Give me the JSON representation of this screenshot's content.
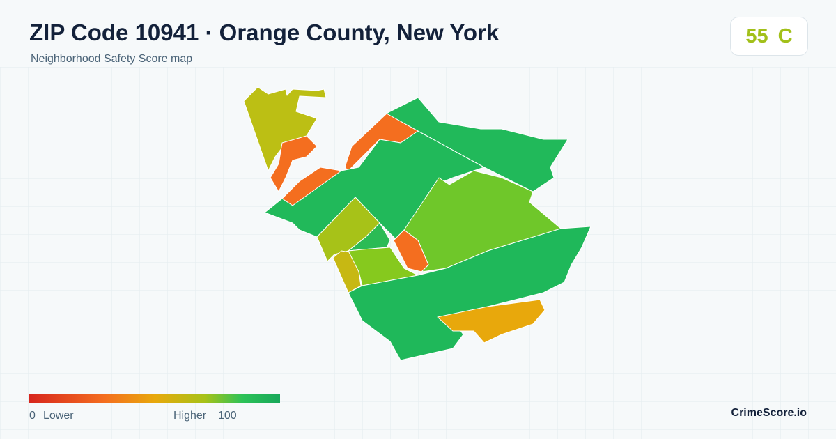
{
  "header": {
    "title": "ZIP Code 10941 · Orange County, New York",
    "subtitle": "Neighborhood Safety Score map"
  },
  "score": {
    "value": "55",
    "grade": "C"
  },
  "legend": {
    "min": "0",
    "min_label": "Lower",
    "max_label": "Higher",
    "max": "100"
  },
  "brand": "CrimeScore.io"
}
